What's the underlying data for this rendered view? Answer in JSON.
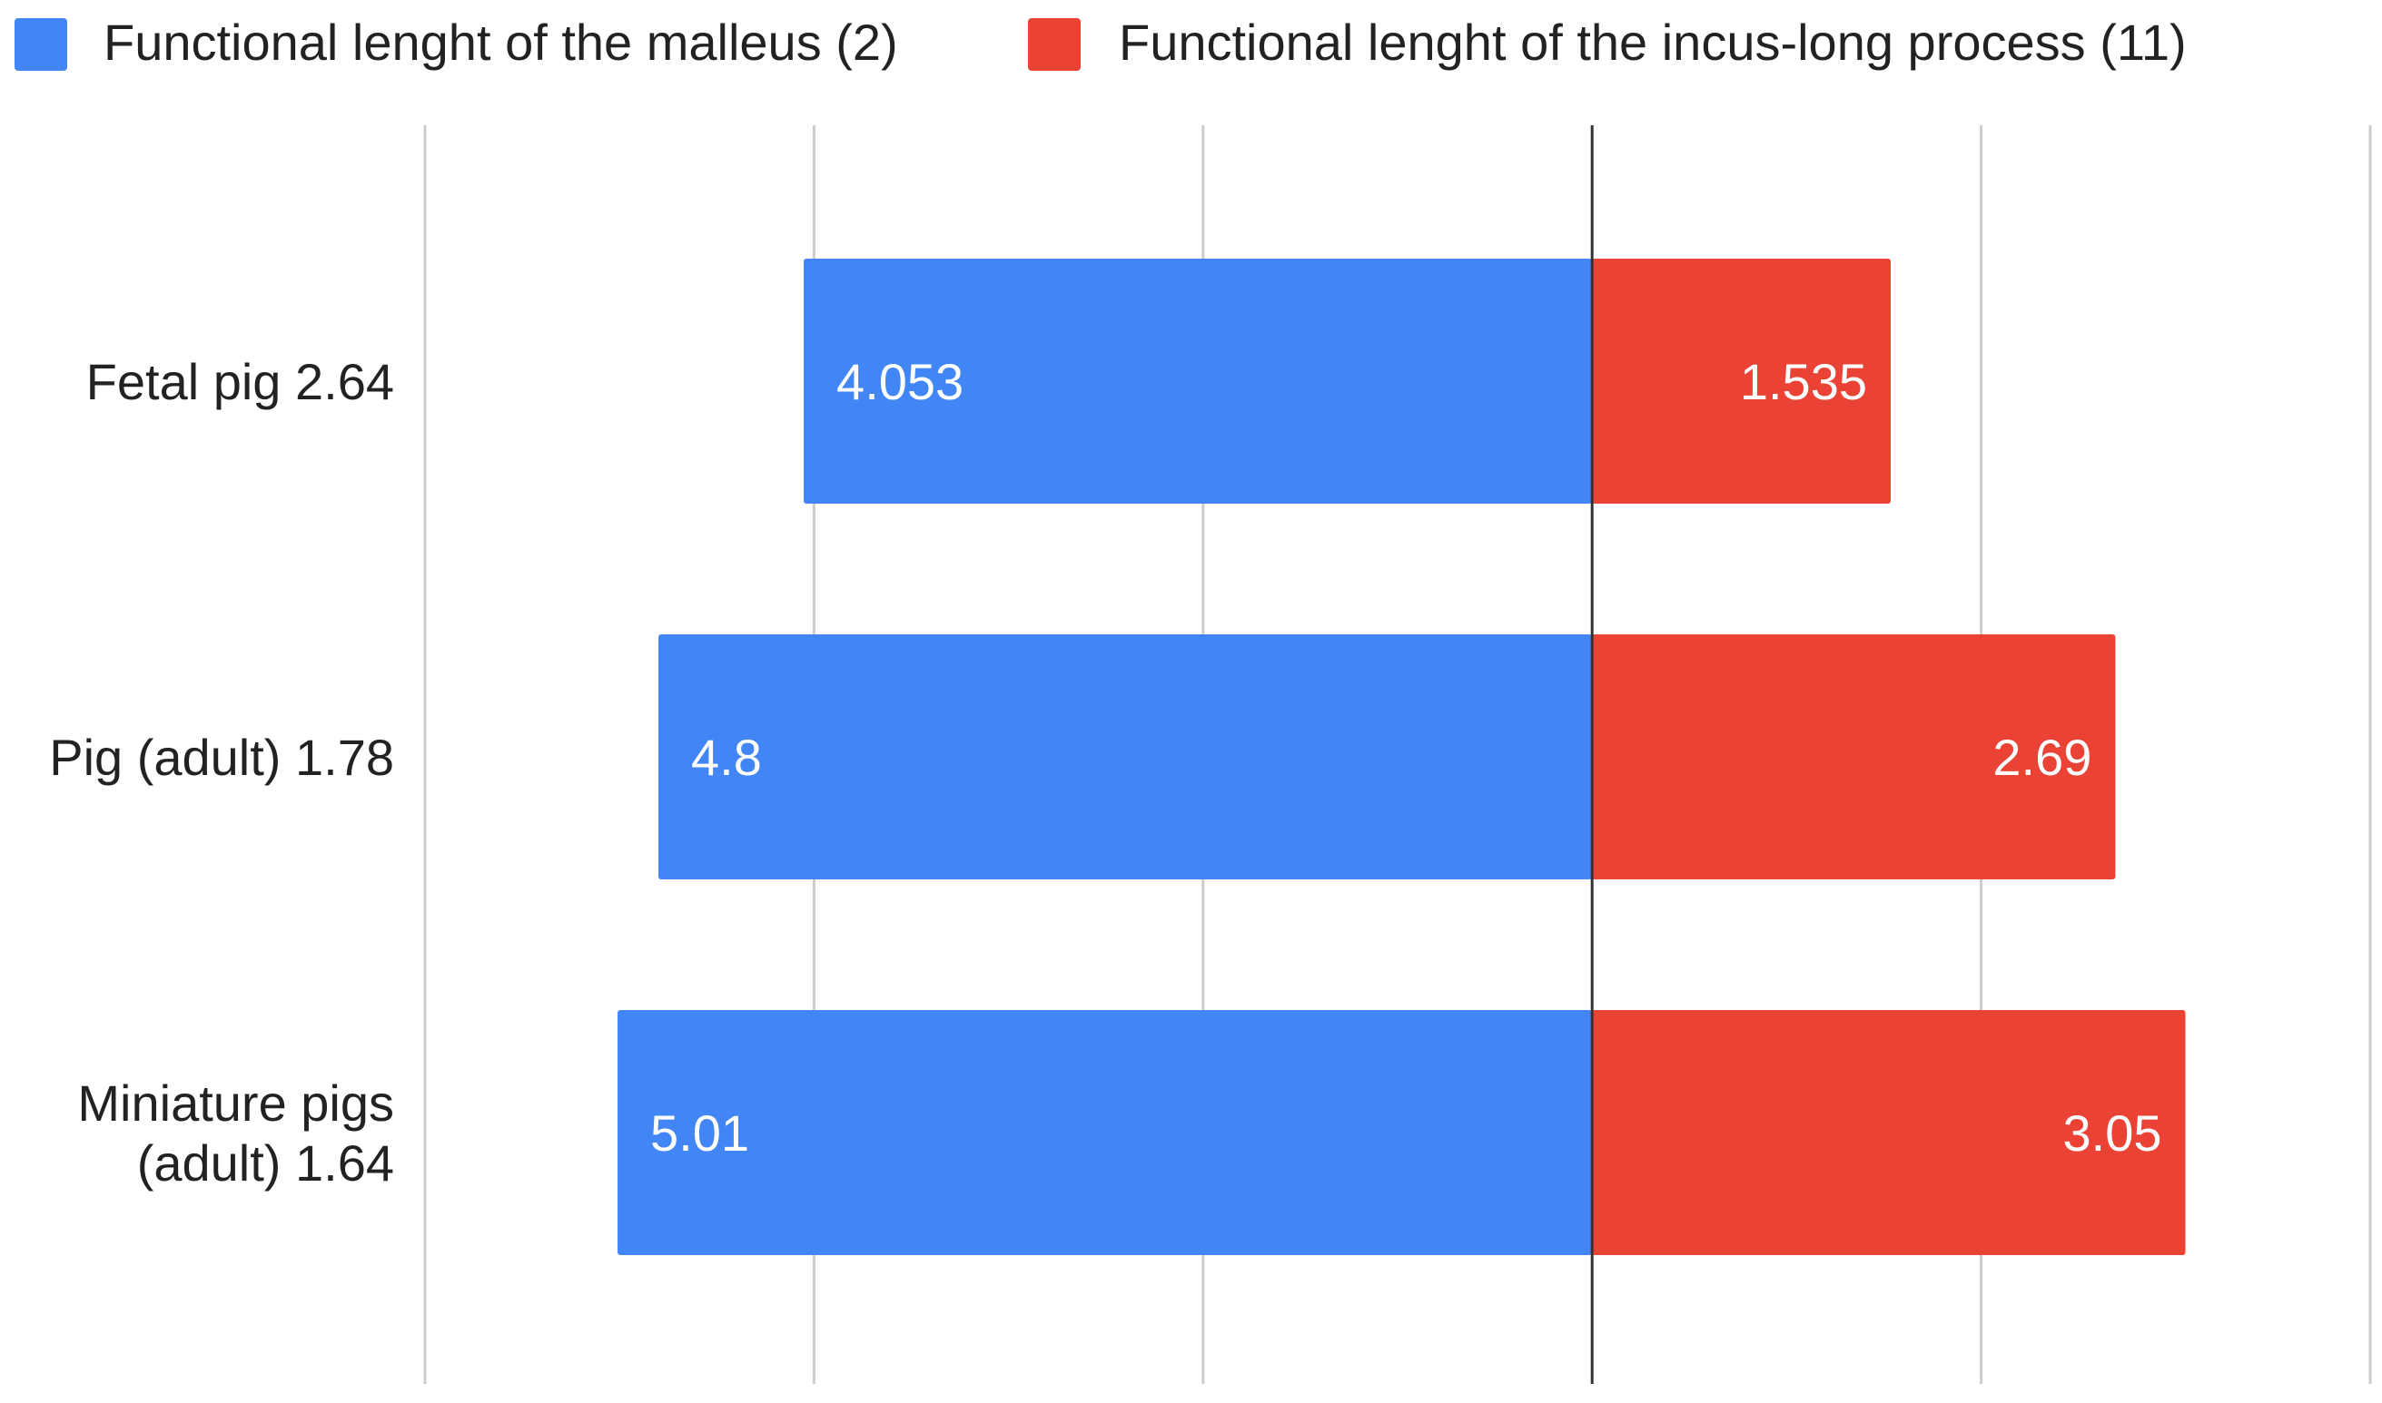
{
  "chart_data": {
    "type": "bar",
    "orientation": "horizontal-diverging",
    "categories": [
      [
        "Fetal pig 2.64"
      ],
      [
        "Pig (adult)  1.78"
      ],
      [
        "Miniature pigs",
        "(adult)  1.64"
      ]
    ],
    "series": [
      {
        "name": "Functional  lenght of the malleus (2)",
        "color": "#4285f4",
        "direction": "left",
        "values": [
          4.053,
          4.8,
          5.01
        ],
        "labels": [
          "4.053",
          "4.8",
          "5.01"
        ]
      },
      {
        "name": "Functional lenght of the incus-long process (11)",
        "color": "#ea4335",
        "direction": "right",
        "values": [
          1.535,
          2.69,
          3.05
        ],
        "labels": [
          "1.535",
          "2.69",
          "3.05"
        ]
      }
    ],
    "xlim": [
      -6,
      4
    ],
    "grid_values": [
      -6,
      -4,
      -2,
      0,
      2,
      4
    ],
    "zero_line_color": "#333333",
    "grid_color": "#cccccc",
    "title": "",
    "xlabel": "",
    "ylabel": "",
    "grid": true,
    "legend_position": "top-left",
    "x_tick_labels_shown": false
  }
}
